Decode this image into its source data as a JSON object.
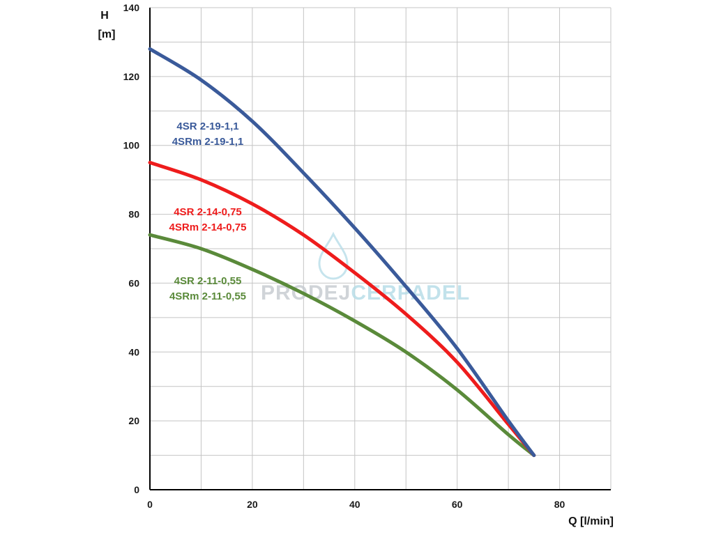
{
  "chart_data": {
    "type": "line",
    "title": "",
    "xlabel": "Q [l/min]",
    "ylabel_line1": "H",
    "ylabel_line2": "[m]",
    "xlim": [
      0,
      90
    ],
    "ylim": [
      0,
      140
    ],
    "x_ticks": [
      0,
      20,
      40,
      60,
      80
    ],
    "y_ticks": [
      0,
      20,
      40,
      60,
      80,
      100,
      120,
      140
    ],
    "x_tick_labels": [
      "0",
      "20",
      "40",
      "60",
      "80"
    ],
    "y_tick_labels": [
      "0",
      "20",
      "40",
      "60",
      "80",
      "100",
      "120",
      "140"
    ],
    "grid": true,
    "x_minor_step": 10,
    "y_minor_step": 10,
    "series": [
      {
        "label_lines": [
          "4SR 2-19-1,1",
          "4SRm 2-19-1,1"
        ],
        "color": "#3a5a9a",
        "x": [
          0,
          10,
          20,
          30,
          40,
          50,
          60,
          70,
          75
        ],
        "y": [
          128,
          119,
          107,
          92,
          76,
          59,
          41,
          20,
          10
        ]
      },
      {
        "label_lines": [
          "4SR 2-14-0,75",
          "4SRm 2-14-0,75"
        ],
        "color": "#ee1c1c",
        "x": [
          0,
          10,
          20,
          30,
          40,
          50,
          60,
          70,
          75
        ],
        "y": [
          95,
          90,
          83,
          74,
          63,
          51,
          37,
          19,
          10
        ]
      },
      {
        "label_lines": [
          "4SR 2-11-0,55",
          "4SRm 2-11-0,55"
        ],
        "color": "#5a8a3a",
        "x": [
          0,
          10,
          20,
          30,
          40,
          50,
          60,
          70,
          75
        ],
        "y": [
          74,
          70,
          64,
          57,
          49,
          40,
          29,
          16,
          10
        ]
      }
    ]
  },
  "watermark": {
    "text_part1": "PRODEJ",
    "text_part2": "CERPADEL",
    "color_part1": "#c8cdd2",
    "color_part2": "#b8dde8",
    "drop_color": "#b8dde8"
  }
}
